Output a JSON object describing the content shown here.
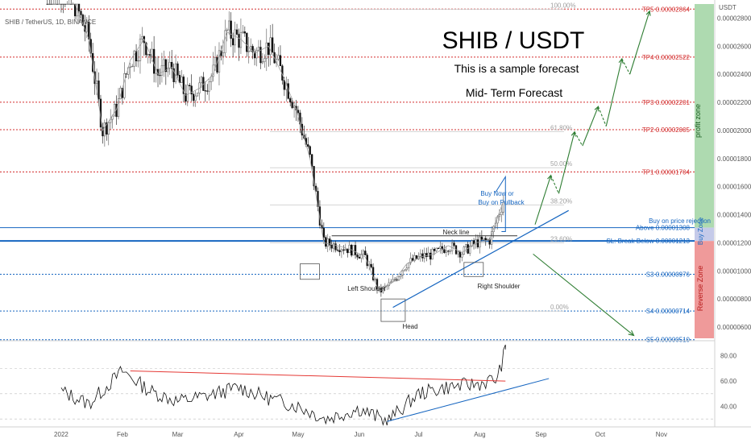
{
  "header": {
    "symbol_line": "SHIB / TetherUS, 1D, BINANCE",
    "title": "SHIB / USDT",
    "subtitle1": "This is a sample forecast",
    "subtitle2": "Mid- Term Forecast",
    "currency": "USDT"
  },
  "colors": {
    "resistance": "#d32f2f",
    "support": "#1565c0",
    "profit_zone": "#a5d6a7",
    "reverse_zone": "#ef9a9a",
    "buy_zone": "#c5cae9",
    "arrow": "#2e7d32",
    "trendline": "#1565c0",
    "rsi_down_line": "#e53935"
  },
  "chart_data": [
    {
      "type": "candlestick",
      "x": [
        "2021-12-25",
        "2022-01-01",
        "2022-01-08",
        "2022-01-15",
        "2022-01-22",
        "2022-01-29",
        "2022-02-05",
        "2022-02-12",
        "2022-02-19",
        "2022-02-26",
        "2022-03-05",
        "2022-03-12",
        "2022-03-19",
        "2022-03-26",
        "2022-04-02",
        "2022-04-09",
        "2022-04-16",
        "2022-04-23",
        "2022-04-30",
        "2022-05-07",
        "2022-05-14",
        "2022-05-21",
        "2022-05-28",
        "2022-06-04",
        "2022-06-11",
        "2022-06-18",
        "2022-06-25",
        "2022-07-02",
        "2022-07-09",
        "2022-07-16",
        "2022-07-23",
        "2022-07-30",
        "2022-08-06",
        "2022-08-13"
      ],
      "close": [
        3.4e-05,
        3.05e-05,
        2.9e-05,
        2.65e-05,
        2e-05,
        2.15e-05,
        2.5e-05,
        2.65e-05,
        2.4e-05,
        2.45e-05,
        2.25e-05,
        2.3e-05,
        2.4e-05,
        2.7e-05,
        2.65e-05,
        2.55e-05,
        2.6e-05,
        2.4e-05,
        2.15e-05,
        1.8e-05,
        1.2e-05,
        1.18e-05,
        1.15e-05,
        1.1e-05,
        8.5e-06,
        9.2e-06,
        1.05e-05,
        1.1e-05,
        1.12e-05,
        1.18e-05,
        1.13e-05,
        1.2e-05,
        1.22e-05,
        1.5e-05
      ],
      "y_ticks": [
        "0.00002800",
        "0.00002600",
        "0.00002400",
        "0.00002200",
        "0.00002000",
        "0.00001800",
        "0.00001600",
        "0.00001400",
        "0.00001200",
        "0.00001000",
        "0.00000800",
        "0.00000600"
      ],
      "ylim": [
        5.2e-06,
        2.9e-05
      ],
      "x_ticks": [
        "2022",
        "Feb",
        "Mar",
        "Apr",
        "May",
        "Jun",
        "Jul",
        "Aug",
        "Sep",
        "Oct",
        "Nov"
      ],
      "levels": [
        {
          "label": "TP5 0.00002864",
          "value": 2.864e-05,
          "kind": "resistance"
        },
        {
          "label": "TP4 0.00002522",
          "value": 2.522e-05,
          "kind": "resistance"
        },
        {
          "label": "TP3 0.00002201",
          "value": 2.201e-05,
          "kind": "resistance"
        },
        {
          "label": "TP2 0.00002005",
          "value": 2.005e-05,
          "kind": "resistance"
        },
        {
          "label": "TP1 0.00001704",
          "value": 1.704e-05,
          "kind": "resistance"
        },
        {
          "label": "Above 0.00001308",
          "value": 1.308e-05,
          "kind": "buy"
        },
        {
          "label": "SL: Break Below 0.00001213",
          "value": 1.213e-05,
          "kind": "stop"
        },
        {
          "label": "S3 0.00000976",
          "value": 9.76e-06,
          "kind": "support"
        },
        {
          "label": "S4 0.00000714",
          "value": 7.14e-06,
          "kind": "support"
        },
        {
          "label": "S5 0.00000510",
          "value": 5.1e-06,
          "kind": "support"
        }
      ],
      "buy_label": "Buy on price rejection",
      "fib_levels": [
        {
          "label": "100.00%",
          "value": 2.864e-05
        },
        {
          "label": "61.80%",
          "value": 1.99e-05
        },
        {
          "label": "50.00%",
          "value": 1.735e-05
        },
        {
          "label": "38.20%",
          "value": 1.47e-05
        },
        {
          "label": "23.60%",
          "value": 1.2e-05
        },
        {
          "label": "0.00%",
          "value": 7.14e-06
        }
      ],
      "annotations": {
        "neck_line": "Neck line",
        "left_shoulder": "Left Shoulder",
        "head": "Head",
        "right_shoulder": "Right Shoulder",
        "buy_now_1": "Buy Now or",
        "buy_now_2": "Buy on  Pullback"
      },
      "zones": {
        "profit": "profit zone",
        "buy": "Buy Zone",
        "reverse": "Reverse Zone"
      }
    },
    {
      "type": "line",
      "indicator": "RSI",
      "y_ticks": [
        "80.00",
        "60.00",
        "40.00"
      ],
      "ylim": [
        25,
        90
      ],
      "x": [
        "2022-01-01",
        "2022-01-15",
        "2022-02-01",
        "2022-02-15",
        "2022-03-01",
        "2022-03-15",
        "2022-04-01",
        "2022-04-15",
        "2022-05-01",
        "2022-05-15",
        "2022-06-01",
        "2022-06-15",
        "2022-07-01",
        "2022-07-15",
        "2022-08-01",
        "2022-08-10",
        "2022-08-14"
      ],
      "values": [
        52,
        42,
        68,
        52,
        44,
        48,
        55,
        47,
        40,
        30,
        38,
        28,
        50,
        55,
        58,
        62,
        85
      ]
    }
  ]
}
